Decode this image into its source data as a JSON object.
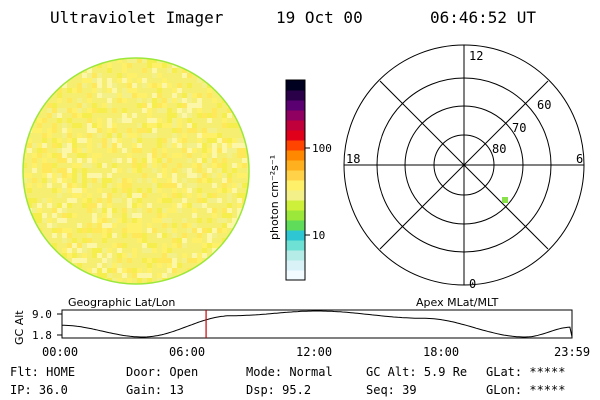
{
  "header": {
    "title": "Ultraviolet Imager",
    "date": "19 Oct 00",
    "time": "06:46:52 UT"
  },
  "colorbar": {
    "unit_label": "photon cm⁻²s⁻¹",
    "tick_labels": [
      "100",
      "10"
    ],
    "colors": [
      "#f2fbff",
      "#d8f2f8",
      "#b6ece8",
      "#6fe0d4",
      "#2ec6d2",
      "#5fdc5a",
      "#9be83a",
      "#cff03a",
      "#f3f08a",
      "#fff06a",
      "#ffd24a",
      "#ffb01e",
      "#ff8800",
      "#ff4400",
      "#e0001a",
      "#c0003a",
      "#900060",
      "#5a0070",
      "#2a0048",
      "#000020"
    ]
  },
  "polar": {
    "mlt_labels": [
      "12",
      "18",
      "6",
      "0"
    ],
    "lat_labels": [
      "60",
      "70",
      "80"
    ],
    "point_color": "#88e04a"
  },
  "image": {
    "fill_colors": [
      "#fff06a",
      "#f3f08a",
      "#fbf6a8",
      "#ffe85a",
      "#f6ee4c"
    ],
    "rim_color": "#9be83a"
  },
  "projection_labels": {
    "left": "Geographic Lat/Lon",
    "right": "Apex MLat/MLT"
  },
  "altitude_plot": {
    "ylabel": "GC Alt",
    "yticks": [
      "9.0",
      "1.8"
    ],
    "xticks": [
      "00:00",
      "06:00",
      "12:00",
      "18:00",
      "23:59"
    ],
    "marker_hour": 6.78,
    "marker_color": "#cc0000"
  },
  "status": {
    "row1": [
      {
        "label": "Flt:",
        "value": "HOME"
      },
      {
        "label": "Door:",
        "value": "Open"
      },
      {
        "label": "Mode:",
        "value": "Normal"
      },
      {
        "label": "GC Alt:",
        "value": "5.9 Re"
      },
      {
        "label": "GLat:",
        "value": "*****"
      }
    ],
    "row2": [
      {
        "label": "IP:",
        "value": "36.0"
      },
      {
        "label": "Gain:",
        "value": "13"
      },
      {
        "label": "Dsp:",
        "value": "95.2"
      },
      {
        "label": "Seq:",
        "value": "39"
      },
      {
        "label": "GLon:",
        "value": "*****"
      }
    ]
  }
}
